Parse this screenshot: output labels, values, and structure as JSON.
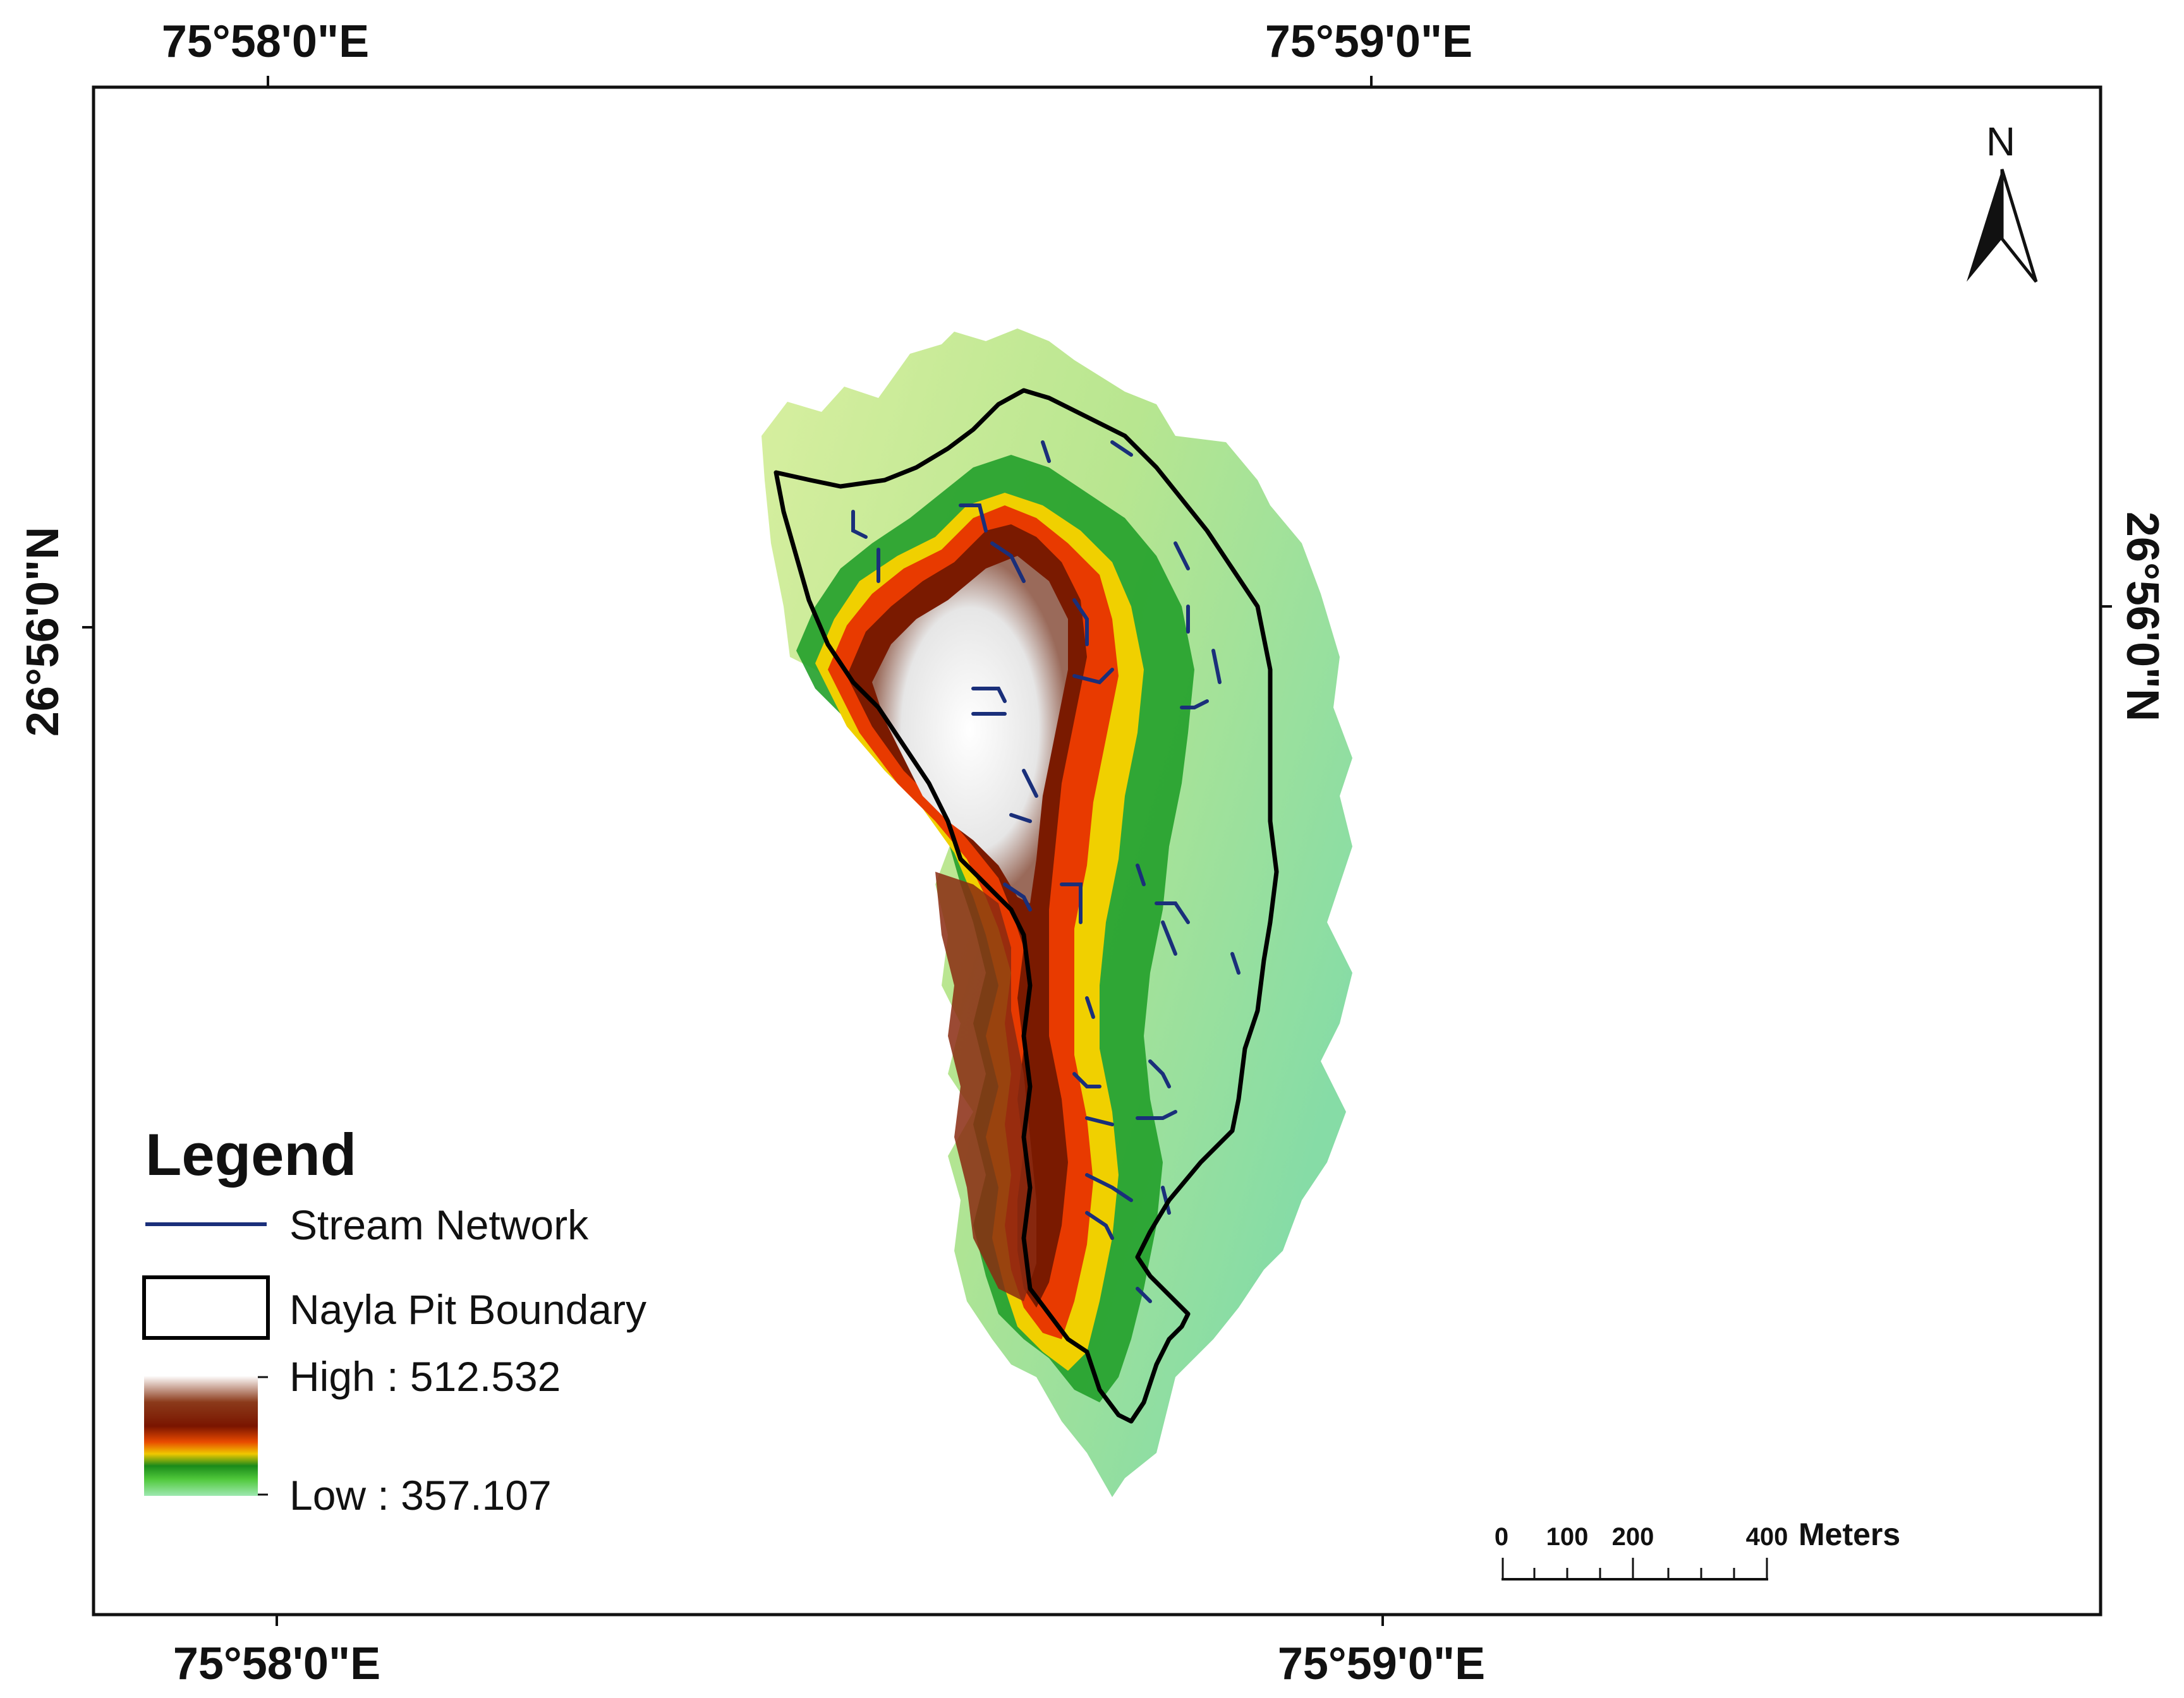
{
  "map": {
    "graticule": {
      "top_left": "75°58'0\"E",
      "top_right": "75°59'0\"E",
      "bottom_left": "75°58'0\"E",
      "bottom_right": "75°59'0\"E",
      "left": "26°56'0\"N",
      "right": "26°56'0\"N"
    },
    "north_arrow": {
      "label": "N"
    },
    "legend": {
      "title": "Legend",
      "stream_label": "Stream Network",
      "boundary_label": "Nayla Pit Boundary",
      "high_label": "High : 512.532",
      "low_label": "Low : 357.107",
      "colors": {
        "stream": "#1a2f7a",
        "boundary": "#000000",
        "ramp": [
          "#ffffff",
          "#8b3a1a",
          "#7a1500",
          "#e84a00",
          "#f0c800",
          "#1a8a1a",
          "#4fc83a",
          "#9ee8b0"
        ]
      }
    },
    "scale_bar": {
      "tick_labels": [
        "0",
        "100",
        "200",
        "400"
      ],
      "unit": "Meters"
    }
  }
}
